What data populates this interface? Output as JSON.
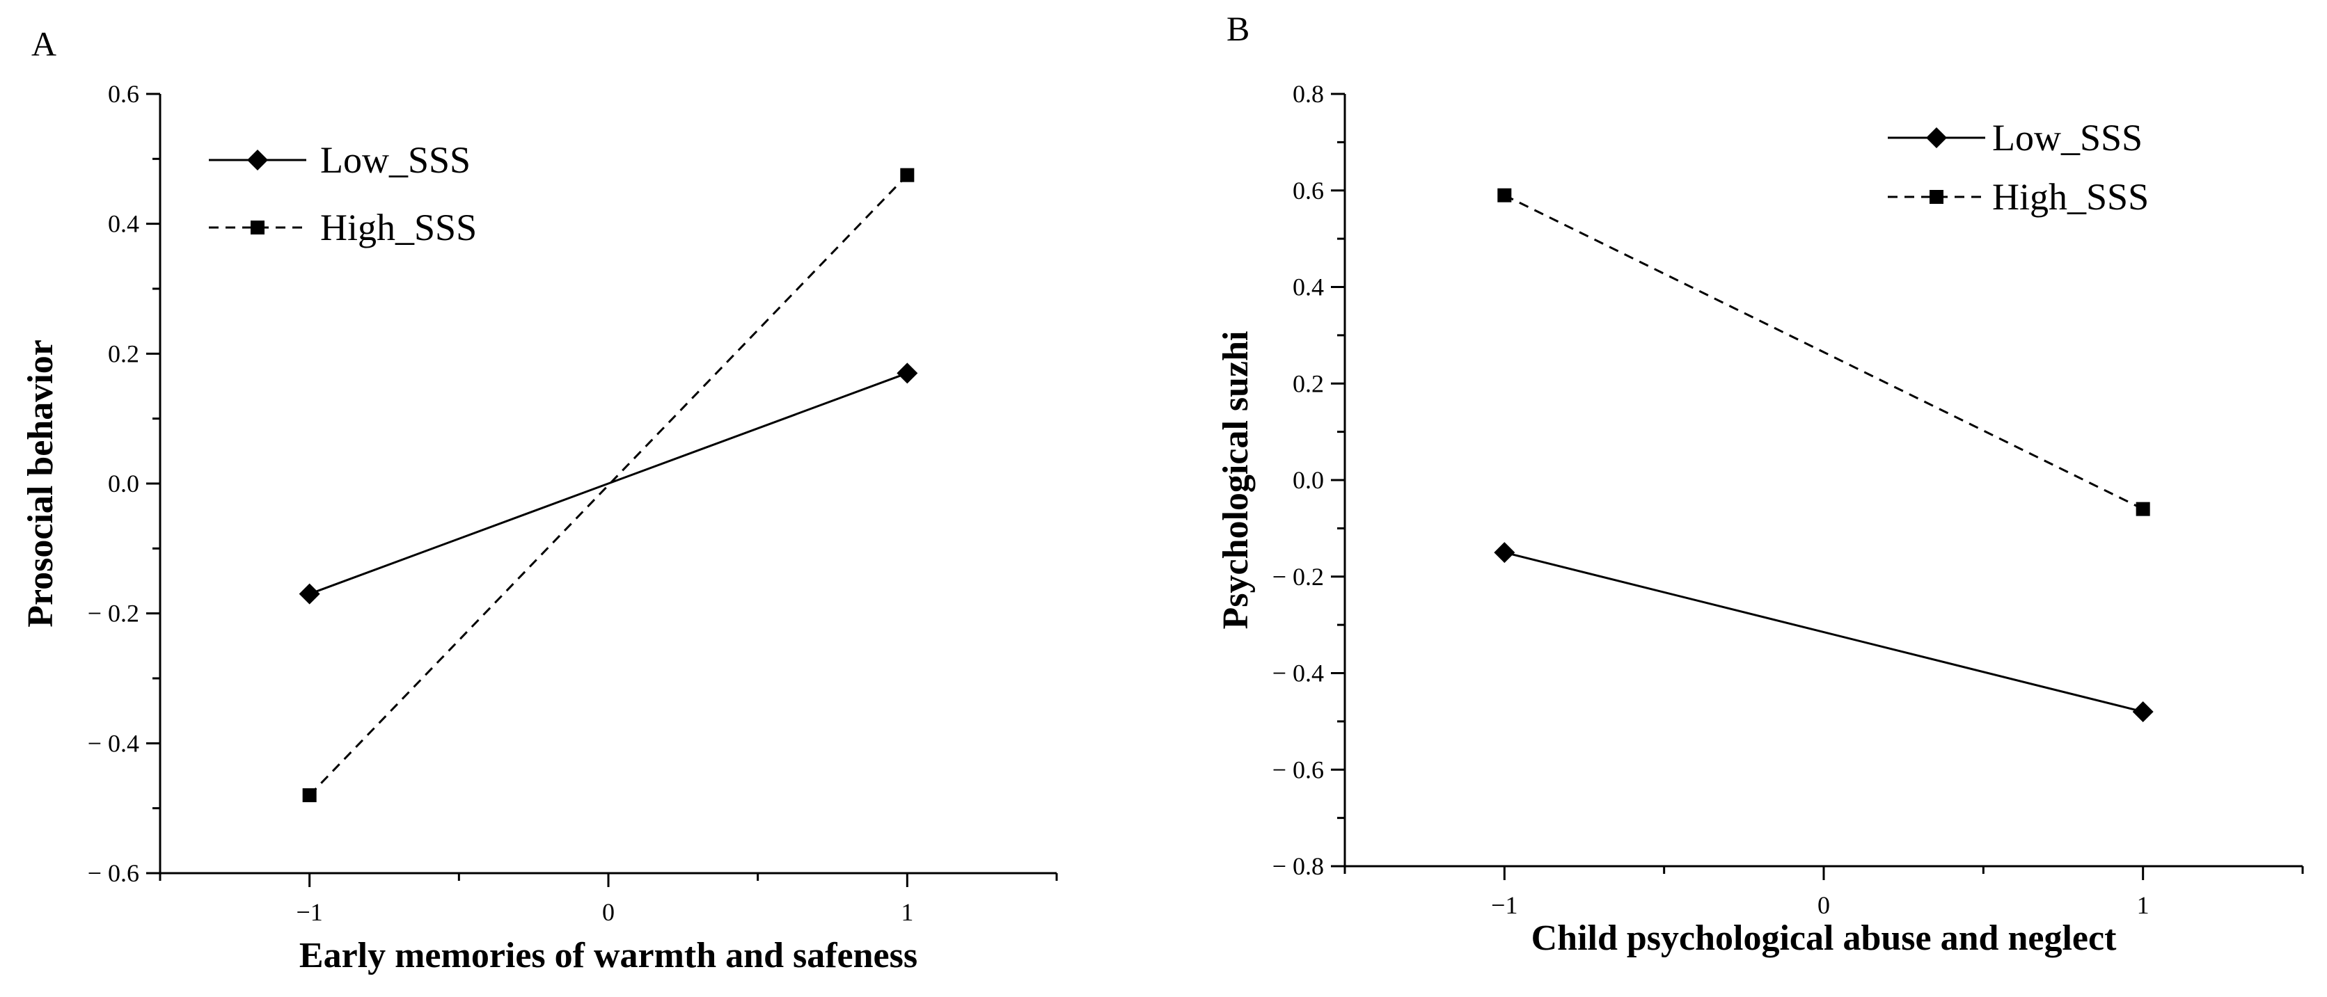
{
  "chart_data": [
    {
      "type": "line",
      "panel_label": "A",
      "xlabel": "Early memories of warmth and safeness",
      "ylabel": "Prosocial behavior",
      "xlim": [
        -1.5,
        1.5
      ],
      "ylim": [
        -0.6,
        0.6
      ],
      "x_ticks": [
        -1,
        0,
        1
      ],
      "x_tick_labels": [
        "−1",
        "0",
        "1"
      ],
      "y_ticks": [
        -0.6,
        -0.4,
        -0.2,
        0.0,
        0.2,
        0.4,
        0.6
      ],
      "y_tick_labels": [
        "− 0.6",
        "− 0.4",
        "− 0.2",
        "0.0",
        "0.2",
        "0.4",
        "0.6"
      ],
      "legend_position": "top-left",
      "series": [
        {
          "name": "Low_SSS",
          "line_style": "solid",
          "marker": "diamond",
          "x": [
            -1,
            1
          ],
          "values": [
            -0.17,
            0.17
          ]
        },
        {
          "name": "High_SSS",
          "line_style": "dashed",
          "marker": "square",
          "x": [
            -1,
            1
          ],
          "values": [
            -0.48,
            0.475
          ]
        }
      ]
    },
    {
      "type": "line",
      "panel_label": "B",
      "xlabel": "Child psychological abuse and neglect",
      "ylabel": "Psychological suzhi",
      "xlim": [
        -1.5,
        1.5
      ],
      "ylim": [
        -0.8,
        0.8
      ],
      "x_ticks": [
        -1,
        0,
        1
      ],
      "x_tick_labels": [
        "−1",
        "0",
        "1"
      ],
      "y_ticks": [
        -0.8,
        -0.6,
        -0.4,
        -0.2,
        0.0,
        0.2,
        0.4,
        0.6,
        0.8
      ],
      "y_tick_labels": [
        "− 0.8",
        "− 0.6",
        "− 0.4",
        "− 0.2",
        "0.0",
        "0.2",
        "0.4",
        "0.6",
        "0.8"
      ],
      "legend_position": "top-right",
      "series": [
        {
          "name": "Low_SSS",
          "line_style": "solid",
          "marker": "diamond",
          "x": [
            -1,
            1
          ],
          "values": [
            -0.15,
            -0.48
          ]
        },
        {
          "name": "High_SSS",
          "line_style": "dashed",
          "marker": "square",
          "x": [
            -1,
            1
          ],
          "values": [
            0.59,
            -0.06
          ]
        }
      ]
    }
  ]
}
